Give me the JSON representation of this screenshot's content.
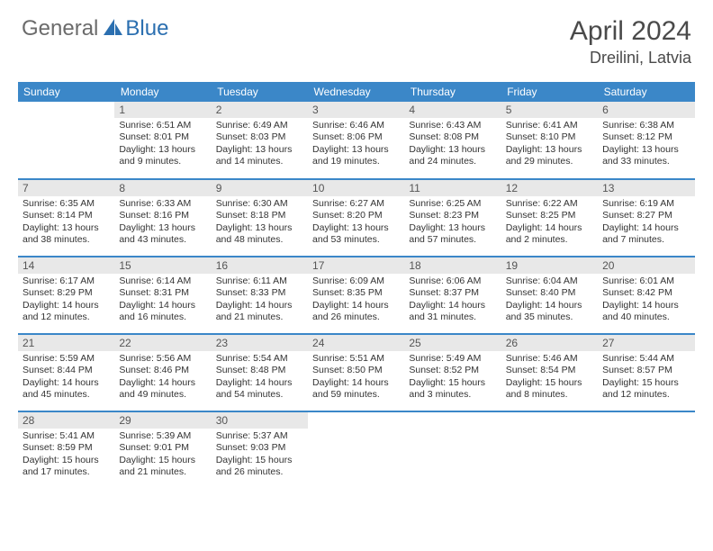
{
  "brand": {
    "part1": "General",
    "part2": "Blue"
  },
  "title": "April 2024",
  "location": "Dreilini, Latvia",
  "colors": {
    "header_bg": "#3b87c8",
    "header_text": "#ffffff",
    "daynum_bg": "#e8e8e8",
    "brand_gray": "#6b6b6b",
    "brand_blue": "#2b6fb0"
  },
  "weekdays": [
    "Sunday",
    "Monday",
    "Tuesday",
    "Wednesday",
    "Thursday",
    "Friday",
    "Saturday"
  ],
  "weeks": [
    [
      {
        "n": "",
        "sr": "",
        "ss": "",
        "dl": ""
      },
      {
        "n": "1",
        "sr": "6:51 AM",
        "ss": "8:01 PM",
        "dl": "13 hours and 9 minutes."
      },
      {
        "n": "2",
        "sr": "6:49 AM",
        "ss": "8:03 PM",
        "dl": "13 hours and 14 minutes."
      },
      {
        "n": "3",
        "sr": "6:46 AM",
        "ss": "8:06 PM",
        "dl": "13 hours and 19 minutes."
      },
      {
        "n": "4",
        "sr": "6:43 AM",
        "ss": "8:08 PM",
        "dl": "13 hours and 24 minutes."
      },
      {
        "n": "5",
        "sr": "6:41 AM",
        "ss": "8:10 PM",
        "dl": "13 hours and 29 minutes."
      },
      {
        "n": "6",
        "sr": "6:38 AM",
        "ss": "8:12 PM",
        "dl": "13 hours and 33 minutes."
      }
    ],
    [
      {
        "n": "7",
        "sr": "6:35 AM",
        "ss": "8:14 PM",
        "dl": "13 hours and 38 minutes."
      },
      {
        "n": "8",
        "sr": "6:33 AM",
        "ss": "8:16 PM",
        "dl": "13 hours and 43 minutes."
      },
      {
        "n": "9",
        "sr": "6:30 AM",
        "ss": "8:18 PM",
        "dl": "13 hours and 48 minutes."
      },
      {
        "n": "10",
        "sr": "6:27 AM",
        "ss": "8:20 PM",
        "dl": "13 hours and 53 minutes."
      },
      {
        "n": "11",
        "sr": "6:25 AM",
        "ss": "8:23 PM",
        "dl": "13 hours and 57 minutes."
      },
      {
        "n": "12",
        "sr": "6:22 AM",
        "ss": "8:25 PM",
        "dl": "14 hours and 2 minutes."
      },
      {
        "n": "13",
        "sr": "6:19 AM",
        "ss": "8:27 PM",
        "dl": "14 hours and 7 minutes."
      }
    ],
    [
      {
        "n": "14",
        "sr": "6:17 AM",
        "ss": "8:29 PM",
        "dl": "14 hours and 12 minutes."
      },
      {
        "n": "15",
        "sr": "6:14 AM",
        "ss": "8:31 PM",
        "dl": "14 hours and 16 minutes."
      },
      {
        "n": "16",
        "sr": "6:11 AM",
        "ss": "8:33 PM",
        "dl": "14 hours and 21 minutes."
      },
      {
        "n": "17",
        "sr": "6:09 AM",
        "ss": "8:35 PM",
        "dl": "14 hours and 26 minutes."
      },
      {
        "n": "18",
        "sr": "6:06 AM",
        "ss": "8:37 PM",
        "dl": "14 hours and 31 minutes."
      },
      {
        "n": "19",
        "sr": "6:04 AM",
        "ss": "8:40 PM",
        "dl": "14 hours and 35 minutes."
      },
      {
        "n": "20",
        "sr": "6:01 AM",
        "ss": "8:42 PM",
        "dl": "14 hours and 40 minutes."
      }
    ],
    [
      {
        "n": "21",
        "sr": "5:59 AM",
        "ss": "8:44 PM",
        "dl": "14 hours and 45 minutes."
      },
      {
        "n": "22",
        "sr": "5:56 AM",
        "ss": "8:46 PM",
        "dl": "14 hours and 49 minutes."
      },
      {
        "n": "23",
        "sr": "5:54 AM",
        "ss": "8:48 PM",
        "dl": "14 hours and 54 minutes."
      },
      {
        "n": "24",
        "sr": "5:51 AM",
        "ss": "8:50 PM",
        "dl": "14 hours and 59 minutes."
      },
      {
        "n": "25",
        "sr": "5:49 AM",
        "ss": "8:52 PM",
        "dl": "15 hours and 3 minutes."
      },
      {
        "n": "26",
        "sr": "5:46 AM",
        "ss": "8:54 PM",
        "dl": "15 hours and 8 minutes."
      },
      {
        "n": "27",
        "sr": "5:44 AM",
        "ss": "8:57 PM",
        "dl": "15 hours and 12 minutes."
      }
    ],
    [
      {
        "n": "28",
        "sr": "5:41 AM",
        "ss": "8:59 PM",
        "dl": "15 hours and 17 minutes."
      },
      {
        "n": "29",
        "sr": "5:39 AM",
        "ss": "9:01 PM",
        "dl": "15 hours and 21 minutes."
      },
      {
        "n": "30",
        "sr": "5:37 AM",
        "ss": "9:03 PM",
        "dl": "15 hours and 26 minutes."
      },
      {
        "n": "",
        "sr": "",
        "ss": "",
        "dl": ""
      },
      {
        "n": "",
        "sr": "",
        "ss": "",
        "dl": ""
      },
      {
        "n": "",
        "sr": "",
        "ss": "",
        "dl": ""
      },
      {
        "n": "",
        "sr": "",
        "ss": "",
        "dl": ""
      }
    ]
  ],
  "labels": {
    "sunrise": "Sunrise:",
    "sunset": "Sunset:",
    "daylight": "Daylight:"
  }
}
